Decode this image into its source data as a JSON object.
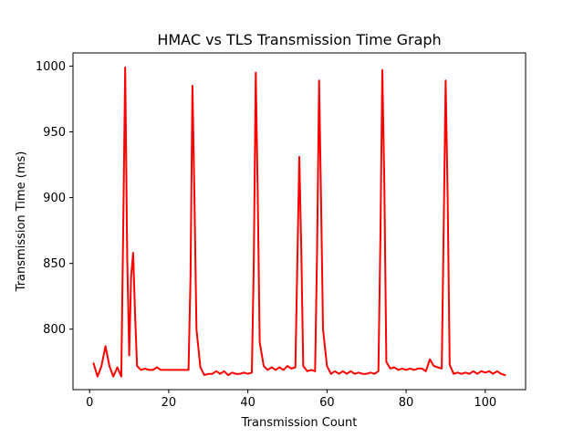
{
  "chart_data": {
    "type": "line",
    "title": "HMAC vs TLS Transmission Time Graph",
    "xlabel": "Transmission Count",
    "ylabel": "Transmission Time (ms)",
    "xlim": [
      -4.2,
      110.2
    ],
    "ylim": [
      754,
      1010
    ],
    "xticks": [
      0,
      20,
      40,
      60,
      80,
      100
    ],
    "yticks": [
      800,
      850,
      900,
      950,
      1000
    ],
    "xtick_labels": [
      "0",
      "20",
      "40",
      "60",
      "80",
      "100"
    ],
    "ytick_labels": [
      "800",
      "850",
      "900",
      "950",
      "1000"
    ],
    "grid": false,
    "legend": "none",
    "series_color": "#ff0000",
    "series": [
      {
        "points": [
          [
            1,
            774
          ],
          [
            2,
            764
          ],
          [
            3,
            772
          ],
          [
            4,
            787
          ],
          [
            5,
            772
          ],
          [
            6,
            764
          ],
          [
            7,
            771
          ],
          [
            8,
            764
          ],
          [
            8.5,
            880
          ],
          [
            9,
            999
          ],
          [
            9.5,
            855
          ],
          [
            10,
            780
          ],
          [
            10.5,
            840
          ],
          [
            11,
            858
          ],
          [
            11.5,
            810
          ],
          [
            12,
            772
          ],
          [
            13,
            769
          ],
          [
            14,
            770
          ],
          [
            15,
            769
          ],
          [
            16,
            769
          ],
          [
            17,
            771
          ],
          [
            18,
            769
          ],
          [
            20,
            769
          ],
          [
            22,
            769
          ],
          [
            24,
            769
          ],
          [
            25,
            769
          ],
          [
            25.5,
            840
          ],
          [
            26,
            985
          ],
          [
            26.5,
            900
          ],
          [
            27,
            800
          ],
          [
            28,
            771
          ],
          [
            29,
            765
          ],
          [
            30,
            766
          ],
          [
            31,
            766
          ],
          [
            32,
            768
          ],
          [
            33,
            766
          ],
          [
            34,
            768
          ],
          [
            35,
            765
          ],
          [
            36,
            767
          ],
          [
            37,
            766
          ],
          [
            38,
            766
          ],
          [
            39,
            767
          ],
          [
            40,
            766
          ],
          [
            41,
            767
          ],
          [
            41.5,
            850
          ],
          [
            42,
            995
          ],
          [
            42.5,
            900
          ],
          [
            43,
            790
          ],
          [
            44,
            772
          ],
          [
            45,
            769
          ],
          [
            46,
            771
          ],
          [
            47,
            769
          ],
          [
            48,
            771
          ],
          [
            49,
            769
          ],
          [
            50,
            772
          ],
          [
            51,
            770
          ],
          [
            52,
            771
          ],
          [
            53,
            931
          ],
          [
            53.5,
            860
          ],
          [
            54,
            772
          ],
          [
            55,
            768
          ],
          [
            56,
            769
          ],
          [
            57,
            768
          ],
          [
            57.5,
            860
          ],
          [
            58,
            989
          ],
          [
            58.5,
            900
          ],
          [
            59,
            800
          ],
          [
            60,
            772
          ],
          [
            61,
            766
          ],
          [
            62,
            768
          ],
          [
            63,
            766
          ],
          [
            64,
            768
          ],
          [
            65,
            766
          ],
          [
            66,
            768
          ],
          [
            67,
            766
          ],
          [
            68,
            767
          ],
          [
            69,
            766
          ],
          [
            70,
            766
          ],
          [
            71,
            767
          ],
          [
            72,
            766
          ],
          [
            73,
            768
          ],
          [
            73.5,
            870
          ],
          [
            74,
            997
          ],
          [
            74.5,
            910
          ],
          [
            75,
            775
          ],
          [
            76,
            770
          ],
          [
            77,
            771
          ],
          [
            78,
            769
          ],
          [
            79,
            770
          ],
          [
            80,
            769
          ],
          [
            81,
            770
          ],
          [
            82,
            769
          ],
          [
            83,
            770
          ],
          [
            84,
            770
          ],
          [
            85,
            768
          ],
          [
            86,
            777
          ],
          [
            87,
            772
          ],
          [
            88,
            771
          ],
          [
            89,
            770
          ],
          [
            89.5,
            880
          ],
          [
            90,
            989
          ],
          [
            90.5,
            900
          ],
          [
            91,
            773
          ],
          [
            92,
            766
          ],
          [
            93,
            767
          ],
          [
            94,
            766
          ],
          [
            95,
            767
          ],
          [
            96,
            766
          ],
          [
            97,
            768
          ],
          [
            98,
            766
          ],
          [
            99,
            768
          ],
          [
            100,
            767
          ],
          [
            101,
            768
          ],
          [
            102,
            766
          ],
          [
            103,
            768
          ],
          [
            104,
            766
          ],
          [
            105,
            765
          ]
        ]
      }
    ]
  }
}
